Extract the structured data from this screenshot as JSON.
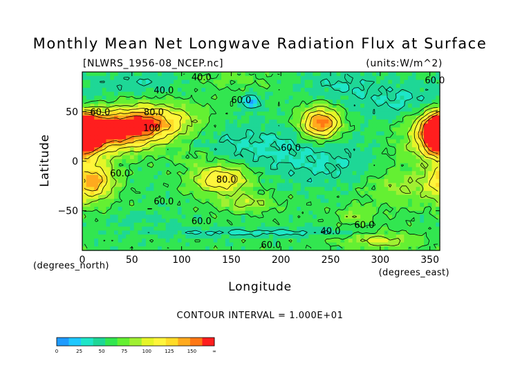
{
  "chart_data": {
    "type": "heatmap",
    "title": "Monthly Mean Net Longwave Radiation Flux at Surface",
    "source_label": "[NLWRS_1956-08_NCEP.nc]",
    "units_label": "(units:W/m^2)",
    "xlabel": "Longitude",
    "ylabel": "Latitude",
    "x_unit_label": "(degrees_east)",
    "y_unit_label": "(degrees_north)",
    "xlim": [
      0,
      360
    ],
    "ylim": [
      -90,
      90
    ],
    "x_ticks": [
      0,
      50,
      100,
      150,
      200,
      250,
      300,
      350
    ],
    "y_ticks": [
      -50,
      0,
      50
    ],
    "contour_interval_text": "CONTOUR INTERVAL = 1.000E+01",
    "colorbar": {
      "tick_labels": [
        "0",
        "25",
        "50",
        "75",
        "100",
        "125",
        "150",
        "∞"
      ],
      "levels": [
        0,
        12.5,
        25,
        37.5,
        50,
        62.5,
        75,
        87.5,
        100,
        112.5,
        125,
        137.5,
        150
      ],
      "colors": [
        "#1e9bff",
        "#1ec8ff",
        "#1ee6c8",
        "#1ed796",
        "#32e650",
        "#64f032",
        "#a0f032",
        "#e6f528",
        "#fff53c",
        "#ffdc28",
        "#ffaa1e",
        "#ff7814",
        "#ff1e1e"
      ]
    },
    "contour_labels": [
      {
        "text": "40.0",
        "lon": 120,
        "lat": 85
      },
      {
        "text": "40.0",
        "lon": 82,
        "lat": 72
      },
      {
        "text": "60.0",
        "lon": 18,
        "lat": 50
      },
      {
        "text": "80.0",
        "lon": 72,
        "lat": 50
      },
      {
        "text": "100",
        "lon": 70,
        "lat": 34
      },
      {
        "text": "60.0",
        "lon": 160,
        "lat": 62
      },
      {
        "text": "60.0",
        "lon": 210,
        "lat": 14
      },
      {
        "text": "60.0",
        "lon": 355,
        "lat": 82
      },
      {
        "text": "60.0",
        "lon": 38,
        "lat": -12
      },
      {
        "text": "80.0",
        "lon": 145,
        "lat": -18
      },
      {
        "text": "60.0",
        "lon": 82,
        "lat": -40
      },
      {
        "text": "60.0",
        "lon": 120,
        "lat": -60
      },
      {
        "text": "40.0",
        "lon": 250,
        "lat": -70
      },
      {
        "text": "60.0",
        "lon": 284,
        "lat": -64
      },
      {
        "text": "60.0",
        "lon": 190,
        "lat": -84
      }
    ],
    "field": {
      "base": 55,
      "features": [
        {
          "lon": 30,
          "lat": 30,
          "rx": 34,
          "ry": 14,
          "amp": 95
        },
        {
          "lon": 72,
          "lat": 40,
          "rx": 30,
          "ry": 12,
          "amp": 60
        },
        {
          "lon": 240,
          "lat": 38,
          "rx": 14,
          "ry": 11,
          "amp": 95
        },
        {
          "lon": 360,
          "lat": 28,
          "rx": 14,
          "ry": 14,
          "amp": 95
        },
        {
          "lon": 0,
          "lat": 28,
          "rx": 8,
          "ry": 12,
          "amp": 85
        },
        {
          "lon": 10,
          "lat": -20,
          "rx": 15,
          "ry": 14,
          "amp": 75
        },
        {
          "lon": 140,
          "lat": -18,
          "rx": 20,
          "ry": 10,
          "amp": 65
        },
        {
          "lon": 320,
          "lat": -25,
          "rx": 25,
          "ry": 14,
          "amp": 25
        },
        {
          "lon": 165,
          "lat": -42,
          "rx": 20,
          "ry": 6,
          "amp": 30
        },
        {
          "lon": 110,
          "lat": 5,
          "rx": 20,
          "ry": 8,
          "amp": 15
        },
        {
          "lon": 340,
          "lat": 10,
          "rx": 24,
          "ry": 8,
          "amp": 14
        },
        {
          "lon": 150,
          "lat": 82,
          "rx": 30,
          "ry": 6,
          "amp": 12
        },
        {
          "lon": 300,
          "lat": -80,
          "rx": 26,
          "ry": 6,
          "amp": 35
        },
        {
          "lon": 275,
          "lat": -55,
          "rx": 12,
          "ry": 6,
          "amp": 25
        },
        {
          "lon": 180,
          "lat": 15,
          "rx": 70,
          "ry": 18,
          "amp": -18
        },
        {
          "lon": 330,
          "lat": 60,
          "rx": 45,
          "ry": 12,
          "amp": -18
        },
        {
          "lon": 260,
          "lat": 78,
          "rx": 30,
          "ry": 10,
          "amp": -15
        },
        {
          "lon": 60,
          "lat": 80,
          "rx": 35,
          "ry": 8,
          "amp": -14
        },
        {
          "lon": 170,
          "lat": 60,
          "rx": 6,
          "ry": 5,
          "amp": -40
        },
        {
          "lon": 250,
          "lat": -8,
          "rx": 40,
          "ry": 14,
          "amp": -12
        },
        {
          "lon": 180,
          "lat": -72,
          "rx": 80,
          "ry": 3,
          "amp": -22
        },
        {
          "lon": 60,
          "lat": -58,
          "rx": 25,
          "ry": 5,
          "amp": -10
        }
      ]
    }
  }
}
